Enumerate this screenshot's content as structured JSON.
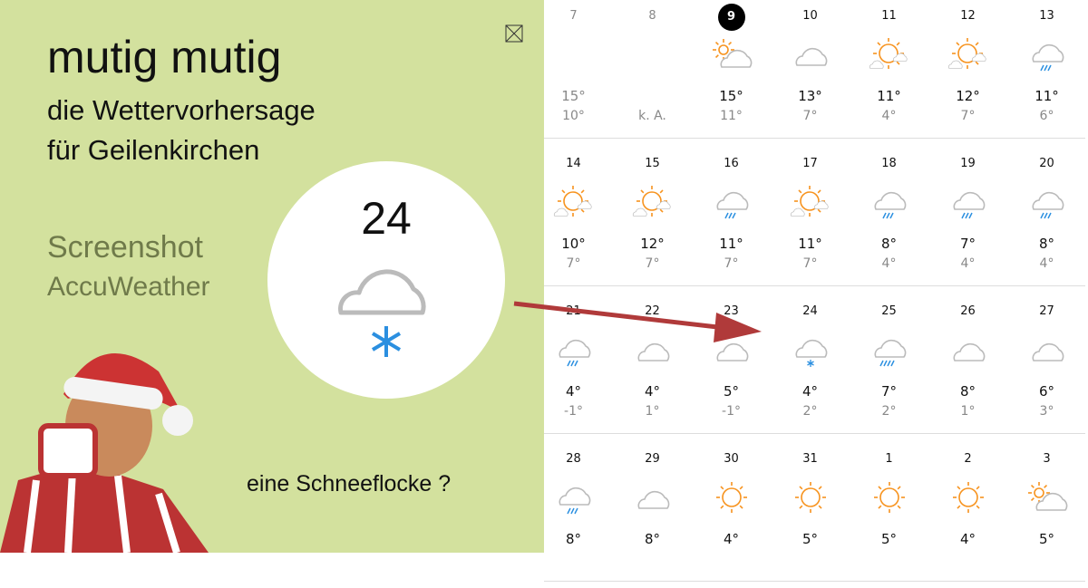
{
  "left": {
    "title": "mutig mutig",
    "subtitle1": "die Wettervorhersage",
    "subtitle2": "für Geilenkirchen",
    "source1": "Screenshot",
    "source2": "AccuWeather",
    "question": "eine Schneeflocke ?",
    "highlight_day": "24",
    "highlight_icon": "cloud-snow-icon"
  },
  "colors": {
    "background": "#d3e19e",
    "sun": "#f7931e",
    "rain": "#2b8fe0",
    "arrow": "#b03a3a"
  },
  "rows": [
    [
      {
        "day": "7",
        "hi": "15°",
        "lo": "10°",
        "icon": "",
        "past": true
      },
      {
        "day": "8",
        "hi": "",
        "lo": "k. A.",
        "icon": "",
        "past": true
      },
      {
        "day": "9",
        "hi": "15°",
        "lo": "11°",
        "icon": "partly",
        "today": true
      },
      {
        "day": "10",
        "hi": "13°",
        "lo": "7°",
        "icon": "cloud"
      },
      {
        "day": "11",
        "hi": "11°",
        "lo": "4°",
        "icon": "mixed"
      },
      {
        "day": "12",
        "hi": "12°",
        "lo": "7°",
        "icon": "mixed"
      },
      {
        "day": "13",
        "hi": "11°",
        "lo": "6°",
        "icon": "rain"
      }
    ],
    [
      {
        "day": "14",
        "hi": "10°",
        "lo": "7°",
        "icon": "mixed"
      },
      {
        "day": "15",
        "hi": "12°",
        "lo": "7°",
        "icon": "mixed"
      },
      {
        "day": "16",
        "hi": "11°",
        "lo": "7°",
        "icon": "rain"
      },
      {
        "day": "17",
        "hi": "11°",
        "lo": "7°",
        "icon": "mixed"
      },
      {
        "day": "18",
        "hi": "8°",
        "lo": "4°",
        "icon": "rain"
      },
      {
        "day": "19",
        "hi": "7°",
        "lo": "4°",
        "icon": "rain"
      },
      {
        "day": "20",
        "hi": "8°",
        "lo": "4°",
        "icon": "rain"
      }
    ],
    [
      {
        "day": "21",
        "hi": "4°",
        "lo": "-1°",
        "icon": "rain"
      },
      {
        "day": "22",
        "hi": "4°",
        "lo": "1°",
        "icon": "cloud"
      },
      {
        "day": "23",
        "hi": "5°",
        "lo": "-1°",
        "icon": "cloud"
      },
      {
        "day": "24",
        "hi": "4°",
        "lo": "2°",
        "icon": "snow"
      },
      {
        "day": "25",
        "hi": "7°",
        "lo": "2°",
        "icon": "heavyrain"
      },
      {
        "day": "26",
        "hi": "8°",
        "lo": "1°",
        "icon": "cloud"
      },
      {
        "day": "27",
        "hi": "6°",
        "lo": "3°",
        "icon": "cloud"
      }
    ],
    [
      {
        "day": "28",
        "hi": "8°",
        "lo": "",
        "icon": "rain"
      },
      {
        "day": "29",
        "hi": "8°",
        "lo": "",
        "icon": "cloud"
      },
      {
        "day": "30",
        "hi": "4°",
        "lo": "",
        "icon": "sun"
      },
      {
        "day": "31",
        "hi": "5°",
        "lo": "",
        "icon": "sun"
      },
      {
        "day": "1",
        "hi": "5°",
        "lo": "",
        "icon": "sun"
      },
      {
        "day": "2",
        "hi": "4°",
        "lo": "",
        "icon": "sun"
      },
      {
        "day": "3",
        "hi": "5°",
        "lo": "",
        "icon": "partly"
      }
    ]
  ]
}
